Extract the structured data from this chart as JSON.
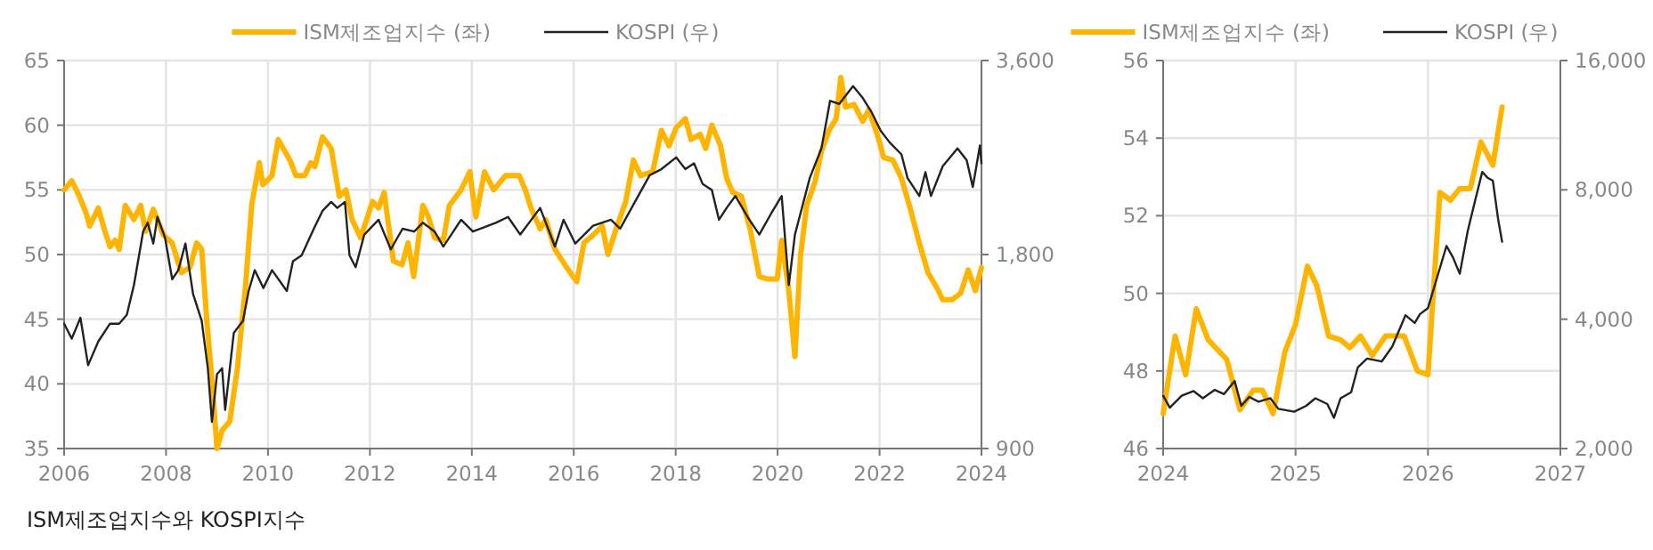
{
  "chart_data": [
    {
      "type": "line",
      "xlim": [
        2006,
        2024
      ],
      "xticks": [
        2006,
        2008,
        2010,
        2012,
        2014,
        2016,
        2018,
        2020,
        2022,
        2024
      ],
      "ylim": [
        35,
        65
      ],
      "yticks": [
        35,
        40,
        45,
        50,
        55,
        60,
        65
      ],
      "y2lim": [
        900,
        3600
      ],
      "y2ticks": [
        900,
        {
          "value": 1800,
          "label": "1,800"
        },
        {
          "value": 3600,
          "label": "3,600"
        }
      ],
      "log": "y2",
      "grid": true,
      "legend": "top",
      "annotations": [
        "ISM제조업지수와 KOSPI지수"
      ],
      "series": [
        {
          "name": "ISM제조업지수 (좌)",
          "color": "#ffb400",
          "x": [
            2006.0,
            2006.15,
            2006.3,
            2006.44,
            2006.5,
            2006.67,
            2006.8,
            2006.9,
            2007.0,
            2007.08,
            2007.2,
            2007.37,
            2007.5,
            2007.6,
            2007.75,
            2007.95,
            2008.12,
            2008.3,
            2008.47,
            2008.6,
            2008.7,
            2008.8,
            2008.9,
            2009.0,
            2009.1,
            2009.25,
            2009.4,
            2009.56,
            2009.68,
            2009.83,
            2009.9,
            2010.08,
            2010.2,
            2010.43,
            2010.55,
            2010.72,
            2010.84,
            2010.92,
            2011.07,
            2011.24,
            2011.4,
            2011.53,
            2011.65,
            2011.82,
            2012.05,
            2012.17,
            2012.28,
            2012.46,
            2012.63,
            2012.75,
            2012.86,
            2013.04,
            2013.15,
            2013.27,
            2013.44,
            2013.56,
            2013.79,
            2013.96,
            2014.08,
            2014.25,
            2014.43,
            2014.66,
            2014.93,
            2015.05,
            2015.16,
            2015.34,
            2015.45,
            2015.63,
            2015.86,
            2016.06,
            2016.2,
            2016.38,
            2016.56,
            2016.67,
            2016.85,
            2017.02,
            2017.17,
            2017.31,
            2017.55,
            2017.72,
            2017.87,
            2018.01,
            2018.19,
            2018.3,
            2018.48,
            2018.59,
            2018.71,
            2018.88,
            2019.0,
            2019.12,
            2019.29,
            2019.47,
            2019.64,
            2019.81,
            2019.99,
            2020.08,
            2020.22,
            2020.34,
            2020.45,
            2020.57,
            2020.74,
            2020.86,
            2021.01,
            2021.15,
            2021.24,
            2021.33,
            2021.5,
            2021.67,
            2021.79,
            2021.97,
            2022.08,
            2022.26,
            2022.43,
            2022.6,
            2022.78,
            2022.95,
            2023.13,
            2023.24,
            2023.42,
            2023.59,
            2023.74,
            2023.88,
            2024.0
          ],
          "values": [
            55.0,
            55.7,
            54.5,
            53.1,
            52.2,
            53.6,
            51.8,
            50.6,
            51.1,
            50.4,
            53.8,
            52.7,
            53.8,
            51.8,
            53.5,
            51.5,
            50.9,
            48.6,
            49.0,
            50.9,
            50.4,
            44.9,
            40.3,
            35.0,
            36.4,
            37.1,
            41.2,
            47.6,
            53.8,
            57.1,
            55.4,
            56.1,
            58.9,
            57.3,
            56.1,
            56.1,
            57.1,
            56.8,
            59.1,
            58.2,
            54.5,
            55.0,
            52.7,
            51.3,
            54.1,
            53.6,
            54.8,
            49.5,
            49.2,
            50.9,
            48.3,
            53.8,
            52.9,
            51.3,
            51.1,
            53.8,
            55.0,
            56.4,
            52.9,
            56.4,
            55.0,
            56.1,
            56.1,
            55.0,
            53.6,
            52.0,
            52.7,
            50.4,
            49.0,
            47.9,
            50.9,
            51.5,
            52.2,
            50.0,
            52.2,
            54.1,
            57.3,
            56.1,
            56.4,
            59.6,
            58.4,
            59.8,
            60.5,
            58.9,
            59.3,
            58.2,
            60.0,
            58.4,
            55.9,
            54.8,
            54.5,
            51.8,
            48.3,
            48.1,
            48.1,
            51.1,
            47.2,
            42.1,
            49.9,
            53.8,
            55.7,
            58.0,
            59.6,
            60.5,
            63.7,
            61.4,
            61.6,
            60.3,
            61.2,
            59.1,
            57.5,
            57.3,
            55.9,
            53.6,
            50.9,
            48.6,
            47.4,
            46.5,
            46.5,
            47.0,
            48.8,
            47.2,
            49.0
          ]
        },
        {
          "name": "KOSPI (우)",
          "color": "#222222",
          "axis": "y2",
          "x": [
            2006.0,
            2006.15,
            2006.32,
            2006.47,
            2006.67,
            2006.9,
            2007.08,
            2007.23,
            2007.37,
            2007.55,
            2007.64,
            2007.75,
            2007.83,
            2007.98,
            2008.12,
            2008.24,
            2008.38,
            2008.53,
            2008.7,
            2008.82,
            2008.9,
            2009.0,
            2009.1,
            2009.16,
            2009.33,
            2009.51,
            2009.62,
            2009.74,
            2009.91,
            2010.08,
            2010.37,
            2010.49,
            2010.66,
            2010.9,
            2011.07,
            2011.24,
            2011.36,
            2011.51,
            2011.6,
            2011.72,
            2011.89,
            2012.17,
            2012.41,
            2012.64,
            2012.87,
            2013.04,
            2013.27,
            2013.44,
            2013.79,
            2014.02,
            2014.48,
            2014.71,
            2014.95,
            2015.34,
            2015.63,
            2015.8,
            2016.03,
            2016.38,
            2016.73,
            2016.91,
            2017.2,
            2017.49,
            2017.72,
            2018.01,
            2018.19,
            2018.36,
            2018.53,
            2018.71,
            2018.85,
            2019.0,
            2019.17,
            2019.41,
            2019.64,
            2019.87,
            2020.08,
            2020.22,
            2020.34,
            2020.63,
            2020.86,
            2021.03,
            2021.21,
            2021.48,
            2021.67,
            2021.85,
            2022.02,
            2022.2,
            2022.43,
            2022.55,
            2022.78,
            2022.9,
            2023.01,
            2023.24,
            2023.53,
            2023.71,
            2023.83,
            2023.97,
            2024.0
          ],
          "values": [
            1406,
            1333,
            1436,
            1212,
            1319,
            1406,
            1406,
            1451,
            1614,
            1954,
            2017,
            1872,
            2059,
            1912,
            1648,
            1702,
            1872,
            1563,
            1420,
            1199,
            990,
            1174,
            1199,
            1033,
            1361,
            1420,
            1580,
            1702,
            1597,
            1702,
            1580,
            1757,
            1794,
            1974,
            2104,
            2172,
            2126,
            2172,
            1794,
            1720,
            1933,
            2038,
            1833,
            1974,
            1954,
            2017,
            1954,
            1852,
            2038,
            1954,
            2017,
            2059,
            1933,
            2126,
            1852,
            2038,
            1872,
            1995,
            2038,
            1974,
            2172,
            2390,
            2442,
            2547,
            2442,
            2493,
            2315,
            2266,
            2038,
            2126,
            2219,
            2059,
            1933,
            2082,
            2219,
            1614,
            1933,
            2365,
            2630,
            3117,
            3083,
            3286,
            3149,
            2987,
            2803,
            2686,
            2574,
            2365,
            2219,
            2416,
            2219,
            2468,
            2630,
            2521,
            2291,
            2657,
            2493
          ]
        }
      ]
    },
    {
      "type": "line",
      "xlim": [
        2024,
        2027
      ],
      "xticks": [
        2024,
        2025,
        2026,
        2027
      ],
      "ylim": [
        46,
        56
      ],
      "yticks": [
        46,
        48,
        50,
        52,
        54,
        56
      ],
      "y2lim": [
        2000,
        16000
      ],
      "y2ticks": [
        {
          "value": 2000,
          "label": "2,000"
        },
        {
          "value": 4000,
          "label": "4,000"
        },
        {
          "value": 8000,
          "label": "8,000"
        },
        {
          "value": 16000,
          "label": "16,000"
        }
      ],
      "log": "y2",
      "grid": true,
      "legend": "top",
      "series": [
        {
          "name": "ISM제조업지수 (좌)",
          "color": "#ffb400",
          "x": [
            2024.0,
            2024.09,
            2024.17,
            2024.25,
            2024.34,
            2024.48,
            2024.58,
            2024.68,
            2024.75,
            2024.83,
            2024.92,
            2025.0,
            2025.09,
            2025.16,
            2025.25,
            2025.34,
            2025.41,
            2025.49,
            2025.58,
            2025.68,
            2025.82,
            2025.92,
            2026.0,
            2026.09,
            2026.17,
            2026.24,
            2026.32,
            2026.4,
            2026.49,
            2026.56
          ],
          "values": [
            46.9,
            48.9,
            47.9,
            49.6,
            48.8,
            48.3,
            47.0,
            47.5,
            47.5,
            46.9,
            48.5,
            49.2,
            50.7,
            50.2,
            48.9,
            48.8,
            48.6,
            48.9,
            48.4,
            48.9,
            48.9,
            48.0,
            47.9,
            52.6,
            52.4,
            52.7,
            52.7,
            53.9,
            53.3,
            54.8
          ]
        },
        {
          "name": "KOSPI (우)",
          "color": "#222222",
          "axis": "y2",
          "x": [
            2024.0,
            2024.05,
            2024.14,
            2024.23,
            2024.3,
            2024.39,
            2024.46,
            2024.54,
            2024.59,
            2024.65,
            2024.72,
            2024.81,
            2024.87,
            2024.99,
            2025.08,
            2025.15,
            2025.24,
            2025.29,
            2025.34,
            2025.42,
            2025.47,
            2025.54,
            2025.65,
            2025.73,
            2025.83,
            2025.9,
            2025.94,
            2026.0,
            2026.08,
            2026.14,
            2026.19,
            2026.24,
            2026.3,
            2026.36,
            2026.41,
            2026.45,
            2026.49,
            2026.53,
            2026.56
          ],
          "values": [
            2654,
            2490,
            2654,
            2721,
            2619,
            2739,
            2678,
            2872,
            2514,
            2637,
            2570,
            2619,
            2474,
            2436,
            2514,
            2619,
            2539,
            2359,
            2619,
            2704,
            3090,
            3240,
            3189,
            3453,
            4087,
            3920,
            4112,
            4245,
            5136,
            5925,
            5560,
            5102,
            6414,
            7637,
            8810,
            8534,
            8402,
            6835,
            6059
          ]
        }
      ]
    }
  ]
}
